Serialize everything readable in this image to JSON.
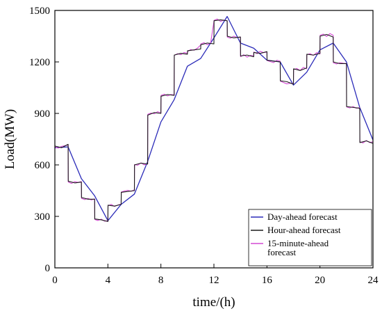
{
  "chart_data": {
    "type": "line",
    "xlabel": "time/(h)",
    "ylabel": "Load(MW)",
    "xlim": [
      0,
      24
    ],
    "ylim": [
      0,
      1500
    ],
    "xticks": [
      0,
      4,
      8,
      12,
      16,
      20,
      24
    ],
    "yticks": [
      0,
      300,
      600,
      900,
      1200,
      1500
    ],
    "grid": false,
    "legend_position": "bottom-right",
    "series": [
      {
        "name": "Day-ahead forecast",
        "color": "#2a2ab8",
        "x": [
          0,
          1,
          2,
          3,
          4,
          5,
          6,
          7,
          8,
          9,
          10,
          11,
          12,
          13,
          14,
          15,
          16,
          17,
          18,
          19,
          20,
          21,
          22,
          23,
          24
        ],
        "y": [
          700,
          705,
          520,
          420,
          275,
          370,
          430,
          620,
          850,
          980,
          1175,
          1220,
          1340,
          1465,
          1310,
          1280,
          1210,
          1200,
          1065,
          1140,
          1270,
          1310,
          1200,
          935,
          745
        ]
      },
      {
        "name": "Hour-ahead forecast",
        "color": "#1a1a1a",
        "x": [
          0,
          0.5,
          1,
          1.01,
          1.5,
          2,
          2.01,
          2.5,
          3,
          3.01,
          3.5,
          4,
          4.01,
          4.5,
          5,
          5.01,
          5.5,
          6,
          6.01,
          6.5,
          7,
          7.01,
          7.5,
          8,
          8.01,
          8.5,
          9,
          9.01,
          9.5,
          10,
          10.01,
          10.5,
          11,
          11.01,
          11.5,
          12,
          12.01,
          12.5,
          13,
          13.01,
          13.5,
          14,
          14.01,
          14.5,
          15,
          15.01,
          15.5,
          16,
          16.01,
          16.5,
          17,
          17.01,
          17.5,
          18,
          18.01,
          18.5,
          19,
          19.01,
          19.5,
          20,
          20.01,
          20.5,
          21,
          21.01,
          21.5,
          22,
          22.01,
          22.5,
          23,
          23.01,
          23.5,
          24
        ],
        "y": [
          710,
          700,
          720,
          505,
          495,
          500,
          410,
          400,
          400,
          285,
          280,
          270,
          365,
          360,
          370,
          440,
          445,
          450,
          600,
          610,
          605,
          890,
          905,
          900,
          1000,
          1010,
          1005,
          1240,
          1250,
          1245,
          1265,
          1270,
          1275,
          1300,
          1310,
          1305,
          1440,
          1445,
          1440,
          1350,
          1340,
          1345,
          1235,
          1240,
          1230,
          1255,
          1250,
          1260,
          1210,
          1205,
          1200,
          1090,
          1085,
          1070,
          1160,
          1150,
          1165,
          1245,
          1240,
          1250,
          1350,
          1360,
          1345,
          1200,
          1190,
          1190,
          940,
          935,
          930,
          730,
          740,
          725
        ]
      },
      {
        "name": "15-minute-ahead forecast",
        "color": "#d44ad4",
        "x": [
          0,
          0.25,
          0.5,
          0.75,
          1,
          1.01,
          1.25,
          1.5,
          1.75,
          2,
          2.01,
          2.25,
          2.5,
          2.75,
          3,
          3.01,
          3.25,
          3.5,
          3.75,
          4,
          4.01,
          4.25,
          4.5,
          4.75,
          5,
          5.01,
          5.25,
          5.5,
          5.75,
          6,
          6.01,
          6.25,
          6.5,
          6.75,
          7,
          7.01,
          7.25,
          7.5,
          7.75,
          8,
          8.01,
          8.25,
          8.5,
          8.75,
          9,
          9.01,
          9.25,
          9.5,
          9.75,
          10,
          10.01,
          10.25,
          10.5,
          10.75,
          11,
          11.01,
          11.25,
          11.5,
          11.75,
          12,
          12.01,
          12.25,
          12.5,
          12.75,
          13,
          13.01,
          13.25,
          13.5,
          13.75,
          14,
          14.01,
          14.25,
          14.5,
          14.75,
          15,
          15.01,
          15.25,
          15.5,
          15.75,
          16,
          16.01,
          16.25,
          16.5,
          16.75,
          17,
          17.01,
          17.25,
          17.5,
          17.75,
          18,
          18.01,
          18.25,
          18.5,
          18.75,
          19,
          19.01,
          19.25,
          19.5,
          19.75,
          20,
          20.01,
          20.25,
          20.5,
          20.75,
          21,
          21.01,
          21.25,
          21.5,
          21.75,
          22,
          22.01,
          22.25,
          22.5,
          22.75,
          23,
          23.01,
          23.25,
          23.5,
          23.75,
          24
        ],
        "y": [
          705,
          698,
          708,
          712,
          715,
          500,
          492,
          502,
          498,
          503,
          405,
          398,
          405,
          396,
          402,
          282,
          276,
          284,
          272,
          275,
          362,
          370,
          358,
          366,
          372,
          442,
          448,
          452,
          446,
          455,
          602,
          598,
          612,
          600,
          608,
          895,
          902,
          898,
          910,
          902,
          1005,
          1012,
          1002,
          1010,
          1008,
          1238,
          1248,
          1242,
          1255,
          1250,
          1260,
          1272,
          1268,
          1280,
          1298,
          1305,
          1312,
          1300,
          1310,
          1435,
          1442,
          1450,
          1436,
          1444,
          1440,
          1345,
          1338,
          1350,
          1342,
          1345,
          1230,
          1242,
          1228,
          1238,
          1235,
          1258,
          1248,
          1262,
          1254,
          1258,
          1208,
          1202,
          1196,
          1210,
          1204,
          1088,
          1080,
          1072,
          1076,
          1074,
          1155,
          1162,
          1150,
          1168,
          1160,
          1242,
          1248,
          1238,
          1254,
          1246,
          1355,
          1362,
          1348,
          1365,
          1355,
          1195,
          1188,
          1196,
          1192,
          1190,
          938,
          932,
          940,
          930,
          934,
          735,
          728,
          742,
          730,
          735
        ]
      }
    ]
  }
}
